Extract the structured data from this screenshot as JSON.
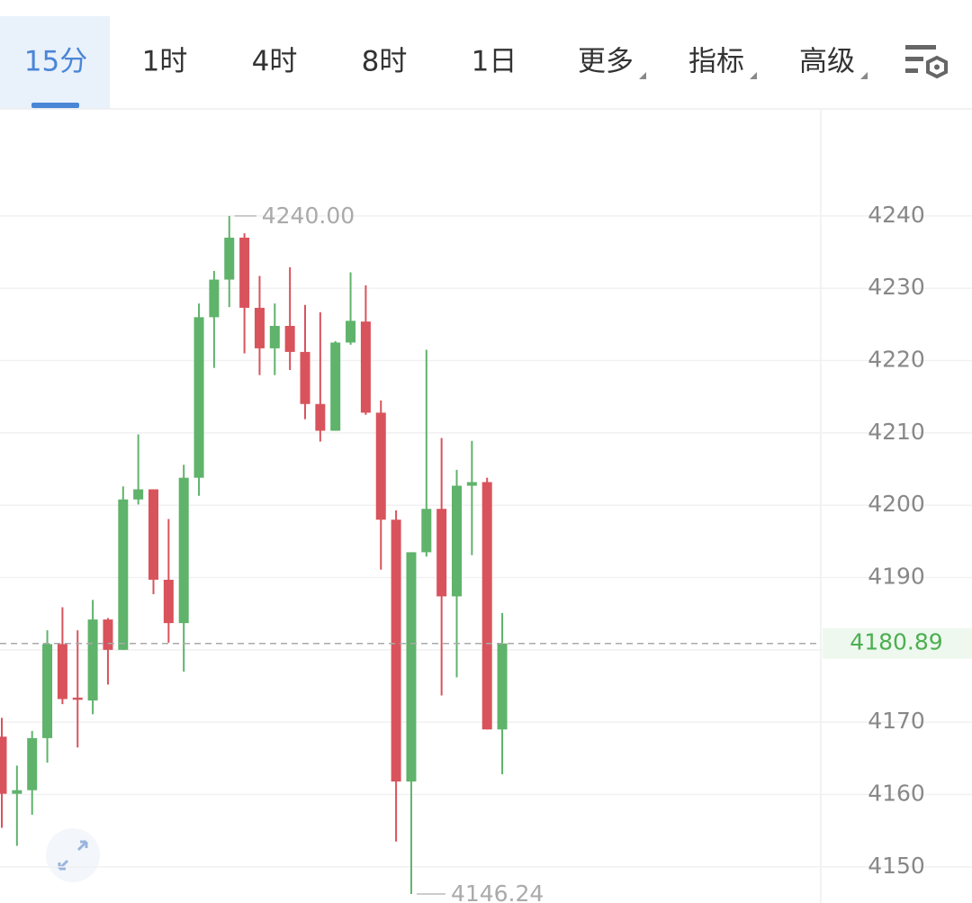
{
  "tabs": [
    "15分",
    "1时",
    "4时",
    "8时",
    "1日"
  ],
  "menus": [
    "更多",
    "指标",
    "高级"
  ],
  "chart_data": {
    "type": "candlestick",
    "open": [
      4168.0,
      4160.1,
      4160.6,
      4167.8,
      4180.8,
      4173.4,
      4173.0,
      4184.2,
      4180.0,
      4200.8,
      4202.2,
      4189.7,
      4183.7,
      4203.8,
      4226.0,
      4231.2,
      4237.0,
      4227.3,
      4221.7,
      4224.8,
      4221.2,
      4214.0,
      4210.3,
      4222.5,
      4225.4,
      4212.8,
      4198.0,
      4161.8,
      4193.5,
      4199.5,
      4187.4,
      4202.7,
      4203.2,
      4169.0
    ],
    "high": [
      4170.6,
      4164.0,
      4168.8,
      4182.7,
      4185.9,
      4182.7,
      4186.9,
      4184.4,
      4202.6,
      4209.8,
      4202.2,
      4198.1,
      4205.6,
      4227.9,
      4232.4,
      4240.0,
      4237.6,
      4231.7,
      4227.9,
      4232.9,
      4227.7,
      4226.7,
      4222.7,
      4232.2,
      4230.4,
      4214.5,
      4199.3,
      4193.5,
      4221.5,
      4209.3,
      4204.9,
      4208.9,
      4203.8,
      4185.1
    ],
    "low": [
      4155.4,
      4152.9,
      4157.2,
      4164.4,
      4172.5,
      4166.5,
      4171.1,
      4175.2,
      4180.0,
      4200.1,
      4187.7,
      4181.0,
      4177.0,
      4201.3,
      4219.0,
      4227.4,
      4221.0,
      4218.0,
      4218.0,
      4218.7,
      4211.9,
      4208.8,
      4210.3,
      4222.2,
      4212.5,
      4191.1,
      4153.5,
      4146.24,
      4192.9,
      4173.7,
      4176.2,
      4193.1,
      4169.0,
      4162.8
    ],
    "close": [
      4160.1,
      4160.6,
      4167.8,
      4180.8,
      4173.2,
      4173.1,
      4184.2,
      4180.0,
      4200.8,
      4202.2,
      4189.7,
      4183.7,
      4203.8,
      4226.0,
      4231.2,
      4237.0,
      4227.3,
      4221.7,
      4224.8,
      4221.2,
      4214.0,
      4210.3,
      4222.5,
      4225.5,
      4212.8,
      4198.0,
      4161.8,
      4193.5,
      4199.5,
      4187.4,
      4202.7,
      4203.2,
      4169.0,
      4180.89
    ],
    "up_color": "#5fb36b",
    "down_color": "#d9535c",
    "high_marker": {
      "value": 4240,
      "label": "4240.00"
    },
    "low_marker": 4146.24,
    "last_price": 4180.89,
    "ylim": [
      4145,
      4254.8
    ],
    "yticks": [
      4150,
      4160,
      4170,
      4180,
      4190,
      4200,
      4210,
      4220,
      4230,
      4240
    ],
    "grid": true
  }
}
